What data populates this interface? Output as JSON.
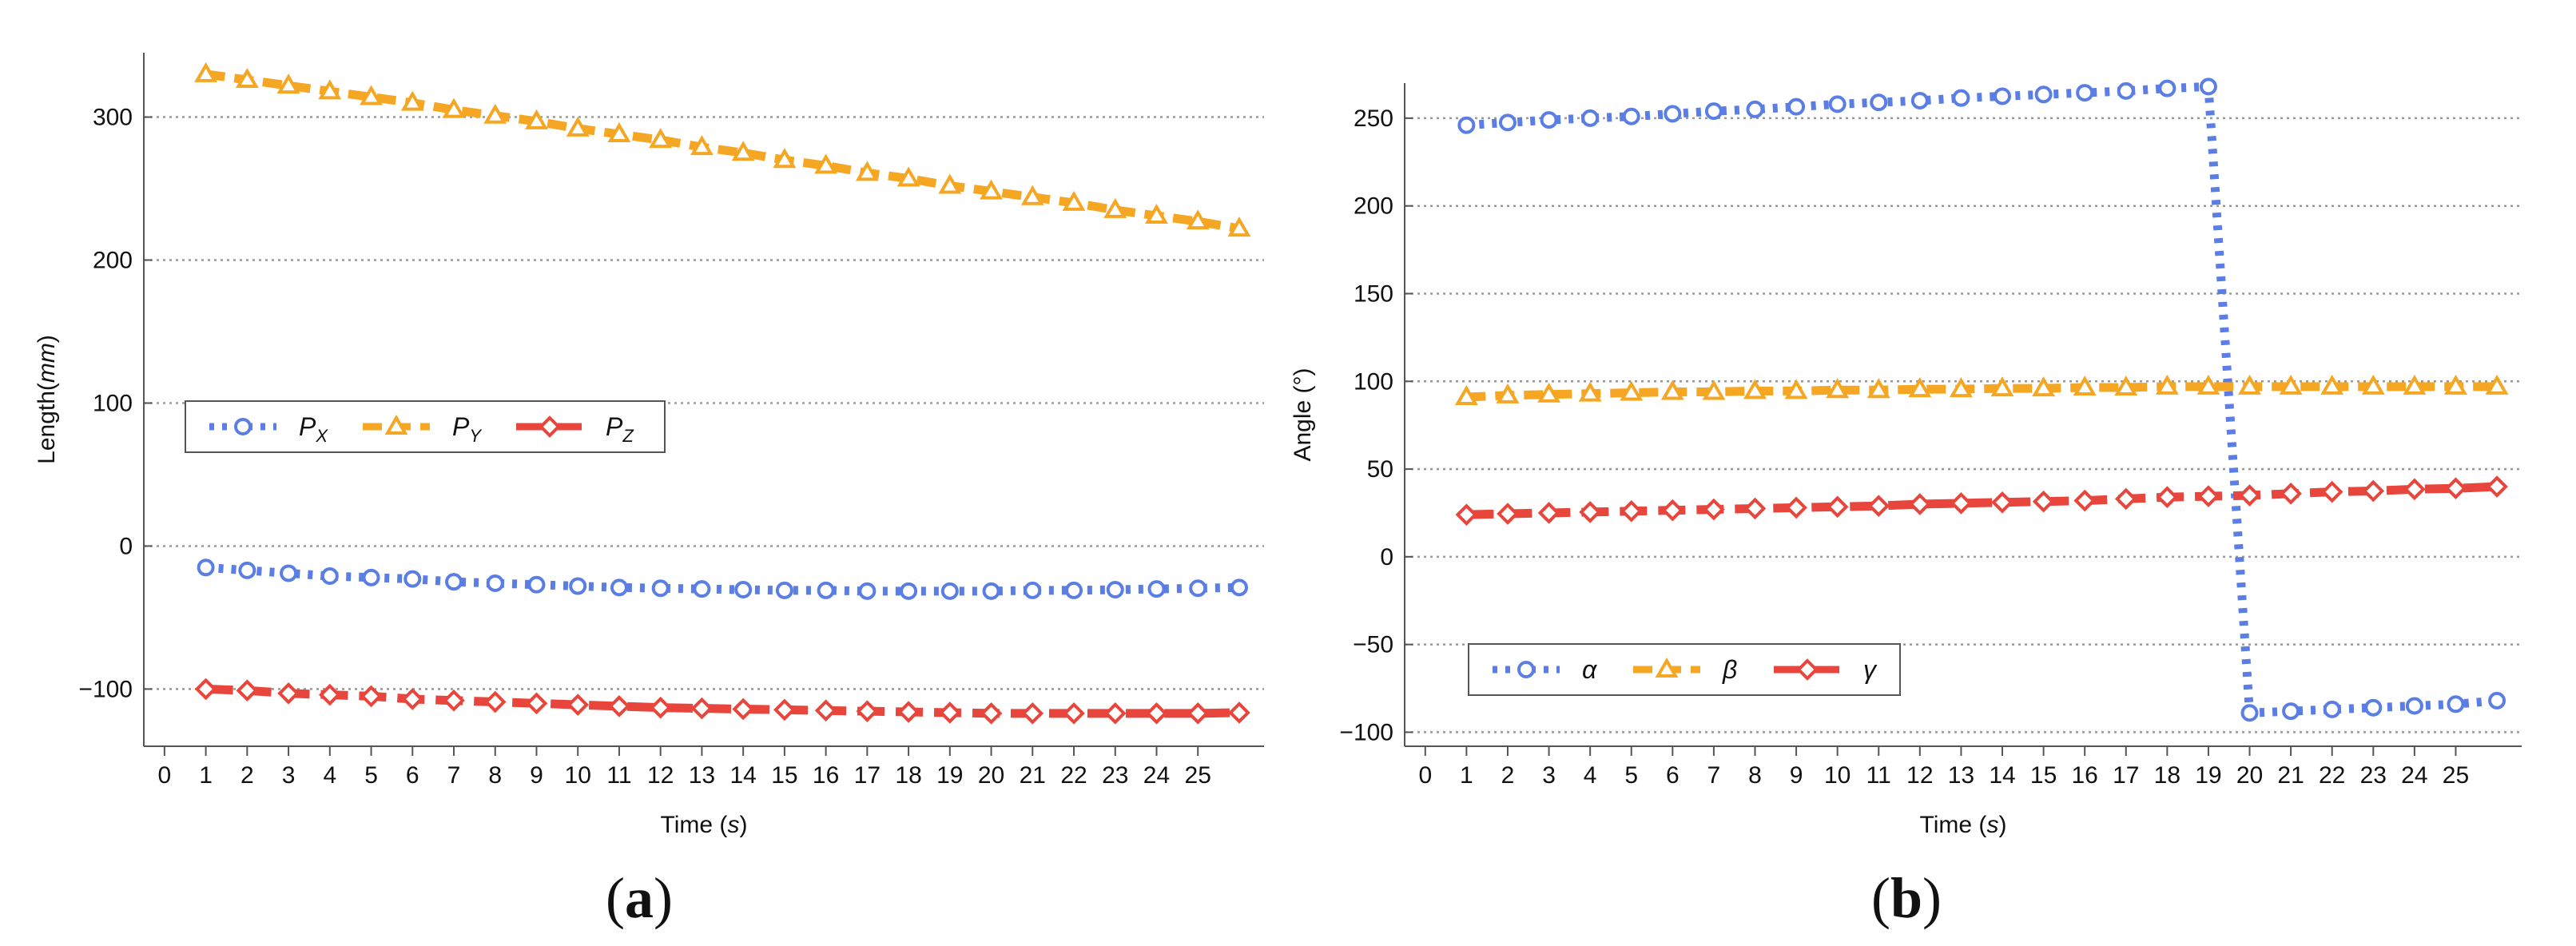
{
  "figure": {
    "panels": [
      {
        "label": "(a)",
        "label_text": "a"
      },
      {
        "label": "(b)",
        "label_text": "b"
      }
    ]
  },
  "colors": {
    "series1": "#5b7ee5",
    "series2": "#f5a623",
    "series3": "#e8463c",
    "grid": "#999999",
    "axis": "#555555"
  },
  "chart_data": [
    {
      "type": "line",
      "panel": "a",
      "title": "",
      "xlabel": "Time",
      "xlabel_unit": "s",
      "ylabel": "Length",
      "ylabel_unit": "mm",
      "xlim": [
        -0.5,
        26.6
      ],
      "ylim": [
        -140,
        345
      ],
      "xticks": [
        0,
        1,
        2,
        3,
        4,
        5,
        6,
        7,
        8,
        9,
        10,
        11,
        12,
        13,
        14,
        15,
        16,
        17,
        18,
        19,
        20,
        21,
        22,
        23,
        24,
        25
      ],
      "yticks": [
        -100,
        0,
        100,
        200,
        300
      ],
      "ytick_labels": [
        "−100",
        "0",
        "100",
        "200",
        "300"
      ],
      "grid": true,
      "legend_position": "center-left",
      "x": [
        1,
        2,
        3,
        4,
        5,
        6,
        7,
        8,
        9,
        10,
        11,
        12,
        13,
        14,
        15,
        16,
        17,
        18,
        19,
        20,
        21,
        22,
        23,
        24,
        25,
        26
      ],
      "series": [
        {
          "name": "P",
          "subscript": "X",
          "marker": "circle",
          "dash": "dot",
          "color_key": "series1",
          "values": [
            -15,
            -17,
            -19,
            -21,
            -22,
            -23,
            -25,
            -26,
            -27,
            -28,
            -29,
            -29.5,
            -30,
            -30.5,
            -31,
            -31,
            -31.5,
            -31.5,
            -31.5,
            -31.5,
            -31,
            -31,
            -30.5,
            -30,
            -29.5,
            -29
          ]
        },
        {
          "name": "P",
          "subscript": "Y",
          "marker": "triangle",
          "dash": "dash",
          "color_key": "series2",
          "values": [
            330,
            326,
            322,
            318,
            314,
            310,
            305,
            301,
            297,
            292,
            288,
            284,
            279,
            275,
            270,
            266,
            261,
            257,
            252,
            248,
            244,
            240,
            235,
            231,
            227,
            222
          ]
        },
        {
          "name": "P",
          "subscript": "Z",
          "marker": "diamond",
          "dash": "longdash",
          "color_key": "series3",
          "values": [
            -100,
            -101,
            -103,
            -104,
            -105,
            -107,
            -108,
            -109,
            -110,
            -111,
            -112,
            -113,
            -113.5,
            -114,
            -114.5,
            -115,
            -115.5,
            -116,
            -116.5,
            -117,
            -117,
            -117,
            -117,
            -117,
            -117,
            -116.5
          ]
        }
      ]
    },
    {
      "type": "line",
      "panel": "b",
      "title": "",
      "xlabel": "Time",
      "xlabel_unit": "s",
      "ylabel": "Angle (°)",
      "xlim": [
        -0.5,
        26.6
      ],
      "ylim": [
        -108,
        270
      ],
      "xticks": [
        0,
        1,
        2,
        3,
        4,
        5,
        6,
        7,
        8,
        9,
        10,
        11,
        12,
        13,
        14,
        15,
        16,
        17,
        18,
        19,
        20,
        21,
        22,
        23,
        24,
        25
      ],
      "yticks": [
        -100,
        -50,
        0,
        50,
        100,
        150,
        200,
        250
      ],
      "ytick_labels": [
        "−100",
        "−50",
        "0",
        "50",
        "100",
        "150",
        "200",
        "250"
      ],
      "grid": true,
      "legend_position": "bottom-left",
      "x": [
        1,
        2,
        3,
        4,
        5,
        6,
        7,
        8,
        9,
        10,
        11,
        12,
        13,
        14,
        15,
        16,
        17,
        18,
        19,
        20,
        21,
        22,
        23,
        24,
        25,
        26
      ],
      "series": [
        {
          "name": "α",
          "marker": "circle",
          "dash": "dot",
          "color_key": "series1",
          "values": [
            246,
            247.5,
            249,
            250,
            251,
            252.5,
            254,
            255,
            256.5,
            258,
            259,
            260,
            261.5,
            262.5,
            263.5,
            264.5,
            265.5,
            267,
            268,
            -89,
            -88,
            -87,
            -86,
            -85,
            -84,
            -82
          ]
        },
        {
          "name": "β",
          "marker": "triangle",
          "dash": "dash",
          "color_key": "series2",
          "values": [
            91,
            92,
            92.5,
            93,
            93.5,
            94,
            94,
            94.5,
            94.5,
            95,
            95,
            95.5,
            95.5,
            96,
            96,
            96.5,
            96.5,
            97,
            97,
            97,
            97,
            97,
            97,
            97,
            97,
            97
          ]
        },
        {
          "name": "γ",
          "marker": "diamond",
          "dash": "longdash",
          "color_key": "series3",
          "values": [
            24,
            24.5,
            25,
            25.5,
            26,
            26.5,
            27,
            27.5,
            28,
            28.5,
            29,
            30,
            30.5,
            31,
            31.5,
            32,
            33,
            34,
            34.5,
            35,
            36,
            37,
            37.5,
            38.5,
            39,
            40
          ]
        }
      ]
    }
  ]
}
